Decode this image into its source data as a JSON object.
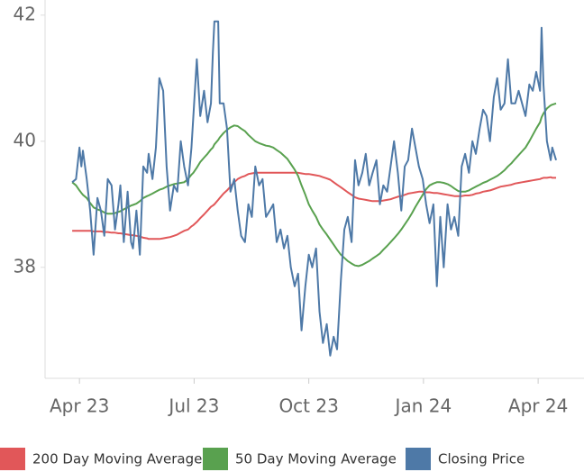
{
  "chart_data": {
    "type": "line",
    "x": [
      -0.19,
      -0.09,
      0,
      0.05,
      0.09,
      0.19,
      0.28,
      0.37,
      0.47,
      0.56,
      0.65,
      0.74,
      0.84,
      0.93,
      1.02,
      1.07,
      1.16,
      1.26,
      1.35,
      1.4,
      1.49,
      1.58,
      1.67,
      1.77,
      1.81,
      1.91,
      2.0,
      2.09,
      2.19,
      2.28,
      2.37,
      2.47,
      2.56,
      2.65,
      2.74,
      2.84,
      2.93,
      2.98,
      3.07,
      3.16,
      3.26,
      3.35,
      3.44,
      3.49,
      3.53,
      3.63,
      3.67,
      3.77,
      3.86,
      3.95,
      4.05,
      4.14,
      4.23,
      4.33,
      4.42,
      4.51,
      4.6,
      4.7,
      4.79,
      4.88,
      4.98,
      5.07,
      5.16,
      5.26,
      5.35,
      5.44,
      5.53,
      5.63,
      5.72,
      5.81,
      5.91,
      6.0,
      6.09,
      6.19,
      6.28,
      6.37,
      6.47,
      6.56,
      6.65,
      6.74,
      6.84,
      6.93,
      7.02,
      7.12,
      7.21,
      7.3,
      7.4,
      7.49,
      7.58,
      7.67,
      7.77,
      7.86,
      7.95,
      8.05,
      8.14,
      8.23,
      8.33,
      8.42,
      8.51,
      8.6,
      8.7,
      8.79,
      8.88,
      8.98,
      9.07,
      9.16,
      9.26,
      9.35,
      9.44,
      9.53,
      9.63,
      9.72,
      9.81,
      9.91,
      10.0,
      10.09,
      10.19,
      10.28,
      10.37,
      10.47,
      10.56,
      10.65,
      10.74,
      10.84,
      10.93,
      11.02,
      11.12,
      11.21,
      11.3,
      11.4,
      11.49,
      11.58,
      11.67,
      11.77,
      11.86,
      11.95,
      12.05,
      12.09,
      12.14,
      12.23,
      12.33,
      12.37,
      12.47
    ],
    "series": [
      {
        "name": "200 Day Moving Average",
        "color": "#e15759",
        "values": [
          38.58,
          38.58,
          38.58,
          38.58,
          38.58,
          38.58,
          38.58,
          38.57,
          38.57,
          38.57,
          38.56,
          38.56,
          38.55,
          38.55,
          38.54,
          38.54,
          38.53,
          38.52,
          38.51,
          38.51,
          38.5,
          38.49,
          38.47,
          38.46,
          38.45,
          38.45,
          38.45,
          38.45,
          38.46,
          38.47,
          38.48,
          38.5,
          38.52,
          38.55,
          38.58,
          38.6,
          38.65,
          38.67,
          38.72,
          38.78,
          38.84,
          38.9,
          38.96,
          38.98,
          39.0,
          39.07,
          39.1,
          39.17,
          39.22,
          39.28,
          39.35,
          39.4,
          39.43,
          39.45,
          39.48,
          39.49,
          39.5,
          39.5,
          39.5,
          39.5,
          39.5,
          39.5,
          39.5,
          39.5,
          39.5,
          39.5,
          39.5,
          39.5,
          39.5,
          39.49,
          39.48,
          39.48,
          39.47,
          39.46,
          39.45,
          39.43,
          39.41,
          39.39,
          39.35,
          39.31,
          39.27,
          39.23,
          39.19,
          39.15,
          39.11,
          39.09,
          39.08,
          39.07,
          39.06,
          39.05,
          39.05,
          39.05,
          39.06,
          39.07,
          39.08,
          39.1,
          39.12,
          39.13,
          39.15,
          39.17,
          39.18,
          39.19,
          39.2,
          39.2,
          39.19,
          39.19,
          39.18,
          39.18,
          39.17,
          39.16,
          39.15,
          39.14,
          39.13,
          39.13,
          39.13,
          39.14,
          39.14,
          39.15,
          39.17,
          39.18,
          39.2,
          39.21,
          39.22,
          39.24,
          39.26,
          39.28,
          39.29,
          39.3,
          39.31,
          39.33,
          39.34,
          39.35,
          39.36,
          39.37,
          39.38,
          39.39,
          39.4,
          39.41,
          39.42,
          39.42,
          39.43,
          39.42,
          39.42
        ]
      },
      {
        "name": "50 Day Moving Average",
        "color": "#59a14f",
        "values": [
          39.35,
          39.3,
          39.22,
          39.18,
          39.15,
          39.1,
          39.02,
          38.95,
          38.92,
          38.9,
          38.87,
          38.85,
          38.85,
          38.86,
          38.88,
          38.89,
          38.92,
          38.95,
          38.98,
          38.99,
          39.01,
          39.05,
          39.1,
          39.13,
          39.14,
          39.17,
          39.2,
          39.23,
          39.25,
          39.28,
          39.3,
          39.32,
          39.33,
          39.34,
          39.35,
          39.4,
          39.47,
          39.5,
          39.58,
          39.67,
          39.74,
          39.8,
          39.87,
          39.9,
          39.95,
          40.02,
          40.06,
          40.13,
          40.18,
          40.22,
          40.25,
          40.24,
          40.2,
          40.16,
          40.1,
          40.05,
          40.0,
          39.97,
          39.95,
          39.93,
          39.92,
          39.9,
          39.86,
          39.82,
          39.77,
          39.72,
          39.64,
          39.55,
          39.45,
          39.3,
          39.15,
          39.0,
          38.9,
          38.8,
          38.68,
          38.6,
          38.52,
          38.44,
          38.36,
          38.28,
          38.2,
          38.15,
          38.1,
          38.06,
          38.03,
          38.02,
          38.04,
          38.07,
          38.1,
          38.14,
          38.18,
          38.22,
          38.28,
          38.34,
          38.4,
          38.46,
          38.53,
          38.6,
          38.68,
          38.76,
          38.86,
          38.96,
          39.05,
          39.15,
          39.24,
          39.3,
          39.33,
          39.35,
          39.35,
          39.34,
          39.32,
          39.29,
          39.25,
          39.21,
          39.2,
          39.2,
          39.22,
          39.25,
          39.28,
          39.31,
          39.34,
          39.36,
          39.39,
          39.42,
          39.45,
          39.49,
          39.54,
          39.6,
          39.65,
          39.72,
          39.78,
          39.84,
          39.9,
          40.0,
          40.1,
          40.2,
          40.3,
          40.38,
          40.44,
          40.52,
          40.57,
          40.58,
          40.6
        ]
      },
      {
        "name": "Closing Price",
        "color": "#4e79a7",
        "values": [
          39.35,
          39.4,
          39.9,
          39.6,
          39.85,
          39.4,
          38.9,
          38.2,
          39.1,
          38.9,
          38.5,
          39.4,
          39.3,
          38.6,
          39.0,
          39.3,
          38.4,
          39.2,
          38.4,
          38.3,
          38.9,
          38.2,
          39.6,
          39.5,
          39.8,
          39.4,
          39.9,
          41.0,
          40.8,
          39.6,
          38.9,
          39.3,
          39.2,
          40.0,
          39.6,
          39.3,
          39.9,
          40.4,
          41.3,
          40.4,
          40.8,
          40.3,
          40.6,
          41.4,
          41.9,
          41.9,
          40.6,
          40.6,
          40.2,
          39.2,
          39.4,
          38.9,
          38.5,
          38.4,
          39.0,
          38.8,
          39.6,
          39.3,
          39.4,
          38.8,
          38.9,
          39.0,
          38.4,
          38.6,
          38.3,
          38.5,
          38.0,
          37.7,
          37.9,
          37.0,
          37.7,
          38.2,
          38.0,
          38.3,
          37.3,
          36.8,
          37.1,
          36.6,
          36.9,
          36.7,
          37.8,
          38.6,
          38.8,
          38.4,
          39.7,
          39.3,
          39.5,
          39.8,
          39.3,
          39.5,
          39.7,
          39.0,
          39.3,
          39.2,
          39.6,
          40.0,
          39.5,
          38.9,
          39.6,
          39.7,
          40.2,
          39.9,
          39.6,
          39.4,
          39.0,
          38.7,
          39.0,
          37.7,
          38.8,
          38.0,
          39.0,
          38.6,
          38.8,
          38.5,
          39.6,
          39.8,
          39.5,
          40.0,
          39.8,
          40.2,
          40.5,
          40.4,
          40.0,
          40.7,
          41.0,
          40.5,
          40.6,
          41.3,
          40.6,
          40.6,
          40.8,
          40.6,
          40.4,
          40.9,
          40.8,
          41.1,
          40.8,
          41.8,
          40.9,
          40.0,
          39.7,
          39.9,
          39.7
        ]
      }
    ],
    "xlim": [
      -0.9,
      13.2
    ],
    "xticks": [
      {
        "value": 0,
        "label": "Apr 23"
      },
      {
        "value": 3,
        "label": "Jul 23"
      },
      {
        "value": 6,
        "label": "Oct 23"
      },
      {
        "value": 9,
        "label": "Jan 24"
      },
      {
        "value": 12,
        "label": "Apr 24"
      }
    ],
    "ylim": [
      36.24,
      42.24
    ],
    "yticks": [
      38,
      40,
      42
    ],
    "grid": false,
    "legend": "bottom"
  }
}
